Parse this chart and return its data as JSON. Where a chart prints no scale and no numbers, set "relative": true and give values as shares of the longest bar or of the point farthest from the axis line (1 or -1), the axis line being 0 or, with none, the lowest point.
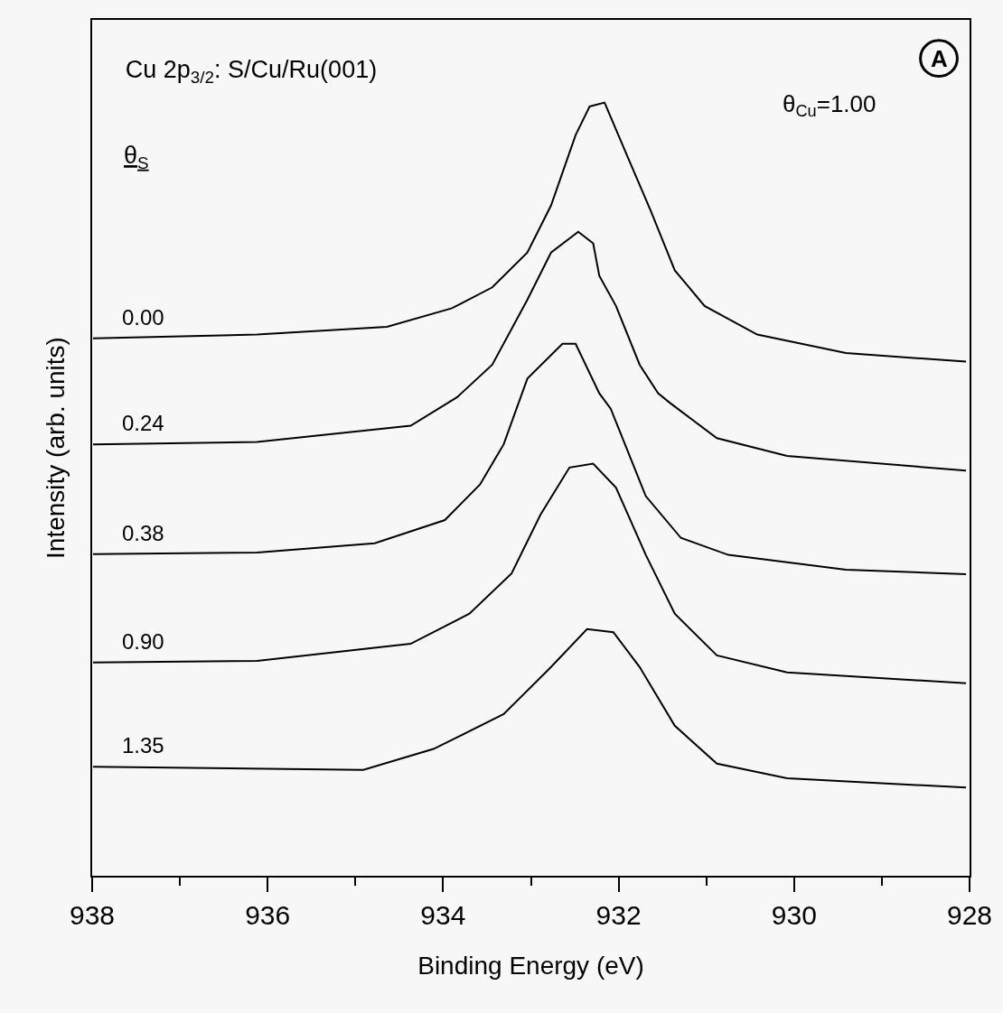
{
  "chart_data": {
    "type": "line",
    "title": "Cu 2p$_{3/2}$: S/Cu/Ru(001)",
    "xlabel": "Binding Energy (eV)",
    "ylabel": "Intensity (arb. units)",
    "legend_title": "θ$_{S}$",
    "relative": true,
    "legend": false,
    "grid": false,
    "marker": "none",
    "line_style": "solid",
    "xlim": [
      938,
      928
    ],
    "xticks": [
      938,
      {
        "value": 937,
        "label": null
      },
      936,
      {
        "value": 935,
        "label": null
      },
      934,
      {
        "value": 933,
        "label": null
      },
      932,
      {
        "value": 931,
        "label": null
      },
      930,
      {
        "value": 929,
        "label": null
      },
      928
    ],
    "annotations": [
      "θ$_{Cu}$=1.00",
      "A"
    ],
    "series": [
      {
        "name": "0.00",
        "color": "#000000",
        "x": [
          937.99,
          936.12,
          934.64,
          933.9,
          933.44,
          933.04,
          932.77,
          932.49,
          932.33,
          932.16,
          931.89,
          931.63,
          931.36,
          931.02,
          930.42,
          929.41,
          928.04
        ],
        "values": [
          0.695,
          0.7,
          0.71,
          0.734,
          0.761,
          0.806,
          0.867,
          0.958,
          0.995,
          1.0,
          0.928,
          0.859,
          0.783,
          0.737,
          0.7,
          0.676,
          0.665
        ]
      },
      {
        "name": "0.24",
        "color": "#000000",
        "x": [
          937.99,
          936.12,
          934.37,
          933.84,
          933.44,
          933.04,
          932.77,
          932.46,
          932.29,
          932.22,
          932.03,
          931.76,
          931.55,
          931.42,
          930.88,
          930.08,
          928.04
        ],
        "values": [
          0.558,
          0.561,
          0.582,
          0.619,
          0.661,
          0.745,
          0.806,
          0.833,
          0.818,
          0.776,
          0.737,
          0.661,
          0.624,
          0.612,
          0.566,
          0.543,
          0.524
        ]
      },
      {
        "name": "0.38",
        "color": "#000000",
        "x": [
          937.99,
          936.12,
          934.78,
          933.98,
          933.58,
          933.31,
          933.04,
          932.64,
          932.49,
          932.22,
          932.09,
          931.69,
          931.29,
          930.75,
          929.41,
          928.04
        ],
        "values": [
          0.416,
          0.418,
          0.43,
          0.46,
          0.506,
          0.558,
          0.643,
          0.688,
          0.688,
          0.624,
          0.604,
          0.491,
          0.437,
          0.415,
          0.396,
          0.39
        ]
      },
      {
        "name": "0.90",
        "color": "#000000",
        "x": [
          937.99,
          936.12,
          934.37,
          933.7,
          933.22,
          932.89,
          932.56,
          932.29,
          932.03,
          931.69,
          931.36,
          930.88,
          930.08,
          928.04
        ],
        "values": [
          0.276,
          0.278,
          0.3,
          0.339,
          0.391,
          0.467,
          0.528,
          0.533,
          0.502,
          0.415,
          0.339,
          0.285,
          0.263,
          0.249
        ]
      },
      {
        "name": "1.35",
        "color": "#000000",
        "x": [
          937.99,
          934.91,
          934.11,
          933.31,
          932.77,
          932.36,
          932.06,
          931.76,
          931.36,
          930.88,
          930.08,
          928.04
        ],
        "values": [
          0.141,
          0.137,
          0.164,
          0.209,
          0.27,
          0.319,
          0.315,
          0.27,
          0.194,
          0.145,
          0.126,
          0.114
        ]
      }
    ]
  }
}
